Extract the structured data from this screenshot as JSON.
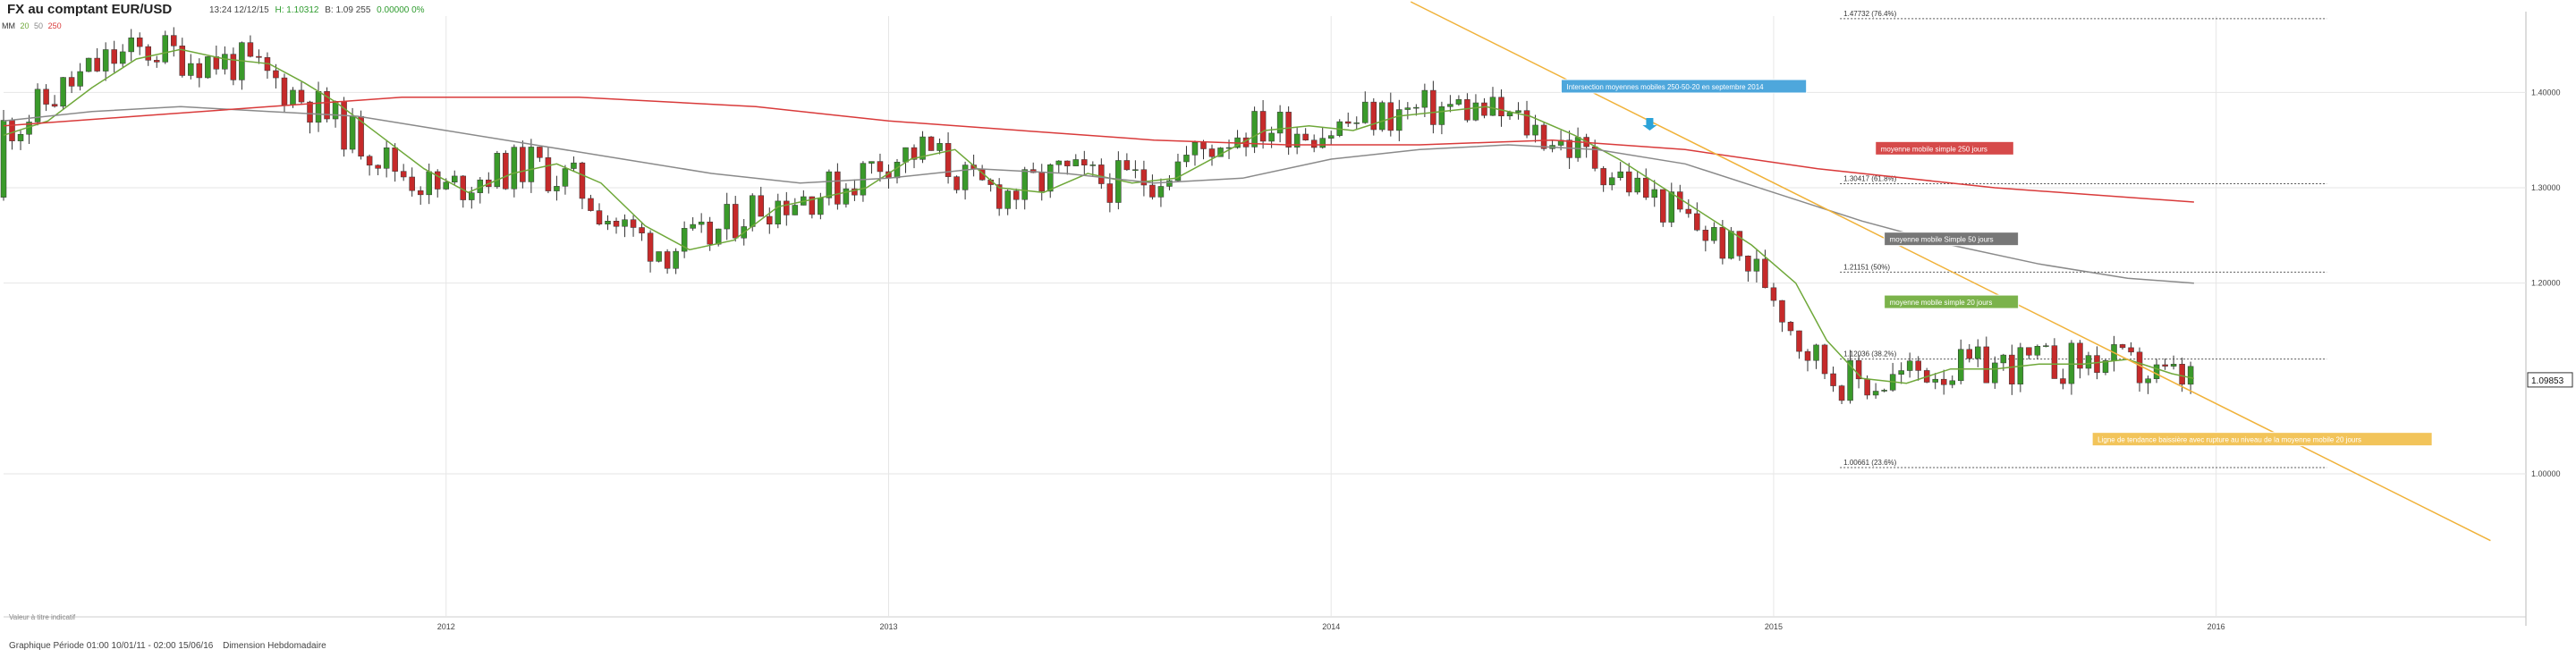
{
  "header": {
    "title": "FX au comptant EUR/USD",
    "time": "13:24 12/12/15",
    "high": "H: 1.10312",
    "bid": "B: 1.09 255",
    "change": "0.00000 0%",
    "mm_label": "MM",
    "mm_periods": [
      "20",
      "50",
      "250"
    ]
  },
  "footer": {
    "period": "Graphique Période 01:00 10/01/11 - 02:00 15/06/16",
    "dimension": "Dimension Hebdomadaire"
  },
  "source_note": "Valeur à titre indicatif",
  "colors": {
    "up": "#3a9a2a",
    "down": "#c62a2a",
    "ma_short": "#6fa83a",
    "ma_long": "#d93a3a",
    "ma_mid": "#8a8a8a",
    "trend": "#f0b23a",
    "grid": "#e6e6e6",
    "arrow": "#2ba3d8"
  },
  "chart_data": {
    "type": "candlestick",
    "title": "FX au comptant EUR/USD",
    "xlim": [
      2011.0,
      2016.7
    ],
    "ylim": [
      0.85,
      1.48
    ],
    "x_ticks": [
      "2012",
      "2013",
      "2014",
      "2015",
      "2016"
    ],
    "x_tick_values": [
      2012,
      2013,
      2014,
      2015,
      2016
    ],
    "y_ticks": [
      "1.40000",
      "1.30000",
      "1.20000",
      "1.00000"
    ],
    "y_tick_values": [
      1.4,
      1.3,
      1.2,
      1.0
    ],
    "current_price": "1.09853",
    "current_value": 1.09853,
    "fib_levels": [
      {
        "label": "1.47732 (76.4%)",
        "value": 1.47732
      },
      {
        "label": "1.30417 (61.8%)",
        "value": 1.30417
      },
      {
        "label": "1.21151 (50%)",
        "value": 1.21151
      },
      {
        "label": "1.12036 (38.2%)",
        "value": 1.12036
      },
      {
        "label": "1.00661 (23.6%)",
        "value": 1.00661
      }
    ],
    "fib_x_range": [
      2015.15,
      2016.25
    ],
    "annotations": [
      {
        "text": "Intersection moyennes mobiles 250-50-20 en septembre 2014",
        "x": 2014.52,
        "y": 1.405,
        "bg": "#4ea7dc"
      },
      {
        "text": "moyenne mobile simple 250 jours",
        "x": 2015.23,
        "y": 1.34,
        "bg": "#d64a4a"
      },
      {
        "text": "moyenne mobile Simple 50 jours",
        "x": 2015.25,
        "y": 1.245,
        "bg": "#777777"
      },
      {
        "text": "moyenne mobile simple 20 jours",
        "x": 2015.25,
        "y": 1.179,
        "bg": "#7bb34b"
      },
      {
        "text": "Ligne de tendance baissière avec rupture au niveau de la moyenne mobile 20 jours",
        "x": 2015.72,
        "y": 1.035,
        "bg": "#f2c45a"
      }
    ],
    "arrow": {
      "x": 2014.72,
      "y": 1.36
    },
    "trendline": {
      "x1": 2014.18,
      "y1": 1.495,
      "x2": 2016.62,
      "y2": 0.93
    },
    "series": [
      {
        "name": "20",
        "kind": "ma",
        "points": [
          [
            2011.0,
            1.355
          ],
          [
            2011.1,
            1.37
          ],
          [
            2011.2,
            1.405
          ],
          [
            2011.3,
            1.435
          ],
          [
            2011.4,
            1.445
          ],
          [
            2011.5,
            1.435
          ],
          [
            2011.6,
            1.43
          ],
          [
            2011.68,
            1.41
          ],
          [
            2011.75,
            1.39
          ],
          [
            2011.85,
            1.355
          ],
          [
            2011.95,
            1.32
          ],
          [
            2012.05,
            1.295
          ],
          [
            2012.15,
            1.315
          ],
          [
            2012.25,
            1.325
          ],
          [
            2012.35,
            1.305
          ],
          [
            2012.45,
            1.26
          ],
          [
            2012.55,
            1.235
          ],
          [
            2012.65,
            1.245
          ],
          [
            2012.75,
            1.28
          ],
          [
            2012.85,
            1.29
          ],
          [
            2012.95,
            1.3
          ],
          [
            2013.05,
            1.33
          ],
          [
            2013.15,
            1.34
          ],
          [
            2013.25,
            1.3
          ],
          [
            2013.35,
            1.295
          ],
          [
            2013.45,
            1.315
          ],
          [
            2013.55,
            1.305
          ],
          [
            2013.65,
            1.31
          ],
          [
            2013.75,
            1.335
          ],
          [
            2013.85,
            1.36
          ],
          [
            2013.95,
            1.365
          ],
          [
            2014.05,
            1.36
          ],
          [
            2014.15,
            1.375
          ],
          [
            2014.25,
            1.38
          ],
          [
            2014.35,
            1.385
          ],
          [
            2014.45,
            1.375
          ],
          [
            2014.55,
            1.355
          ],
          [
            2014.65,
            1.33
          ],
          [
            2014.75,
            1.3
          ],
          [
            2014.85,
            1.27
          ],
          [
            2014.95,
            1.24
          ],
          [
            2015.05,
            1.2
          ],
          [
            2015.12,
            1.14
          ],
          [
            2015.2,
            1.1
          ],
          [
            2015.3,
            1.095
          ],
          [
            2015.4,
            1.11
          ],
          [
            2015.5,
            1.11
          ],
          [
            2015.6,
            1.115
          ],
          [
            2015.7,
            1.115
          ],
          [
            2015.8,
            1.12
          ],
          [
            2015.9,
            1.105
          ],
          [
            2015.95,
            1.1
          ]
        ]
      },
      {
        "name": "50",
        "kind": "ma",
        "points": [
          [
            2011.0,
            1.37
          ],
          [
            2011.2,
            1.38
          ],
          [
            2011.4,
            1.385
          ],
          [
            2011.6,
            1.38
          ],
          [
            2011.8,
            1.375
          ],
          [
            2012.0,
            1.36
          ],
          [
            2012.2,
            1.345
          ],
          [
            2012.4,
            1.33
          ],
          [
            2012.6,
            1.315
          ],
          [
            2012.8,
            1.305
          ],
          [
            2013.0,
            1.31
          ],
          [
            2013.2,
            1.32
          ],
          [
            2013.4,
            1.315
          ],
          [
            2013.6,
            1.305
          ],
          [
            2013.8,
            1.31
          ],
          [
            2014.0,
            1.33
          ],
          [
            2014.2,
            1.34
          ],
          [
            2014.4,
            1.345
          ],
          [
            2014.6,
            1.34
          ],
          [
            2014.8,
            1.325
          ],
          [
            2015.0,
            1.295
          ],
          [
            2015.2,
            1.265
          ],
          [
            2015.4,
            1.24
          ],
          [
            2015.6,
            1.22
          ],
          [
            2015.8,
            1.205
          ],
          [
            2015.95,
            1.2
          ]
        ]
      },
      {
        "name": "250",
        "kind": "ma",
        "points": [
          [
            2011.0,
            1.365
          ],
          [
            2011.3,
            1.375
          ],
          [
            2011.6,
            1.385
          ],
          [
            2011.9,
            1.395
          ],
          [
            2012.3,
            1.395
          ],
          [
            2012.7,
            1.385
          ],
          [
            2013.0,
            1.37
          ],
          [
            2013.3,
            1.36
          ],
          [
            2013.6,
            1.35
          ],
          [
            2013.9,
            1.345
          ],
          [
            2014.2,
            1.345
          ],
          [
            2014.5,
            1.35
          ],
          [
            2014.8,
            1.34
          ],
          [
            2015.1,
            1.32
          ],
          [
            2015.5,
            1.3
          ],
          [
            2015.95,
            1.285
          ]
        ]
      }
    ],
    "candles_summary": "weekly OHLC, 2011-01 to 2015-12"
  }
}
